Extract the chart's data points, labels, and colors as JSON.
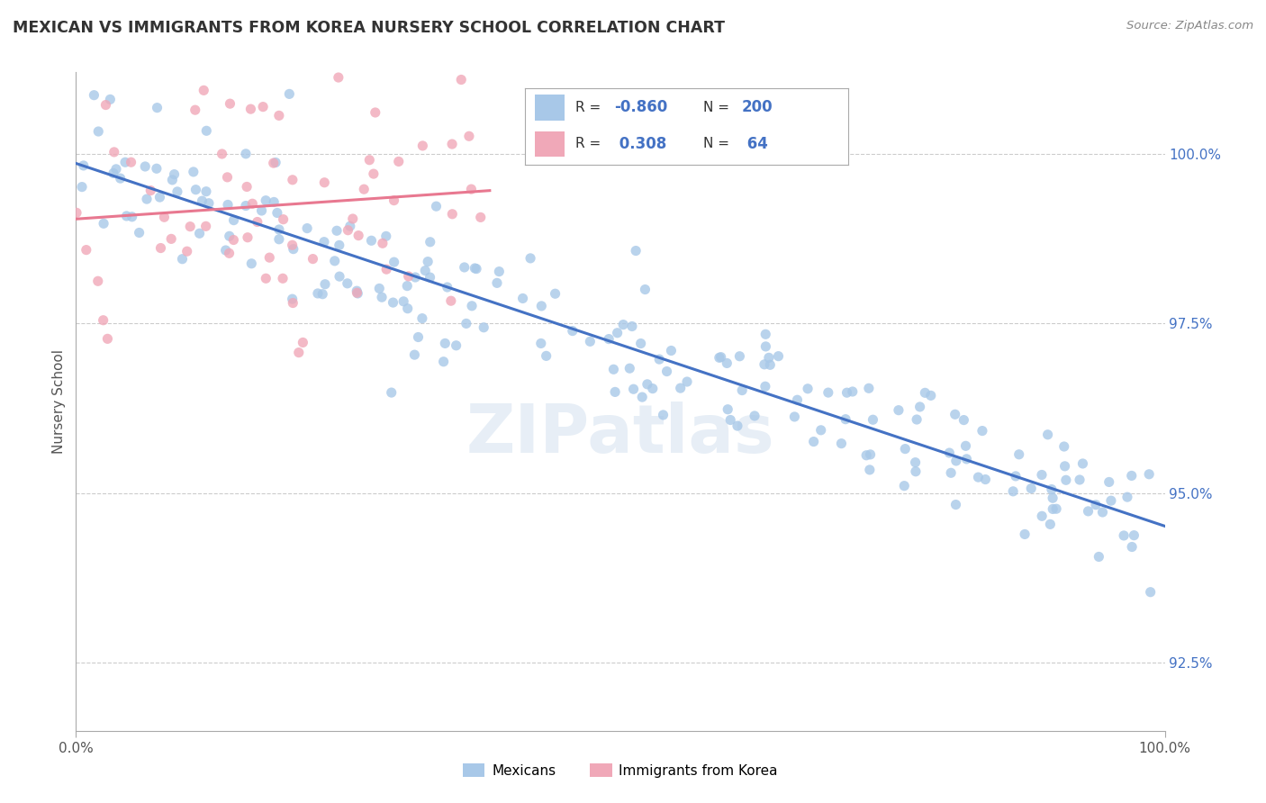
{
  "title": "MEXICAN VS IMMIGRANTS FROM KOREA NURSERY SCHOOL CORRELATION CHART",
  "source": "Source: ZipAtlas.com",
  "ylabel": "Nursery School",
  "ytick_vals": [
    92.5,
    95.0,
    97.5,
    100.0
  ],
  "blue_dot_color": "#a8c8e8",
  "pink_dot_color": "#f0a8b8",
  "blue_line_color": "#4472c4",
  "pink_line_color": "#e87890",
  "legend_box_color": "#c8dff0",
  "legend_pink_color": "#f0a8b8",
  "watermark": "ZIPatlas",
  "background_color": "#ffffff",
  "xlim": [
    0,
    100
  ],
  "ylim": [
    91.5,
    101.2
  ],
  "blue_scatter_seed": 42,
  "pink_scatter_seed": 7
}
